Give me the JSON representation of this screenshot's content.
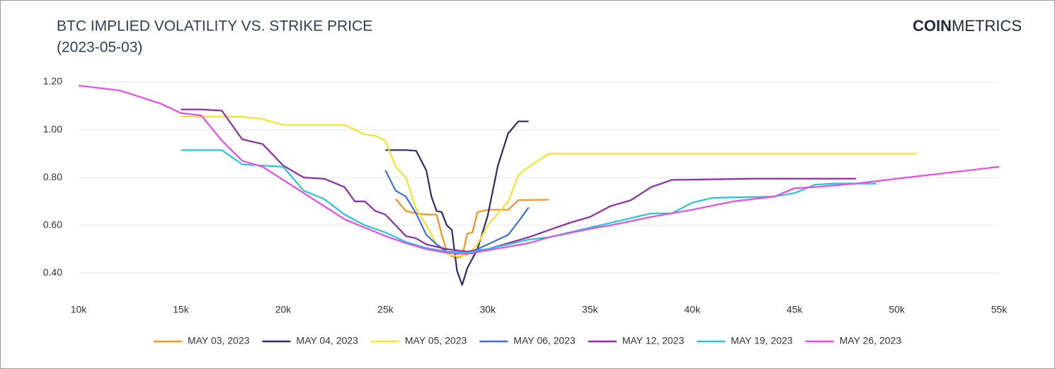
{
  "logo": {
    "bold": "COIN",
    "light": "METRICS"
  },
  "chart_data": {
    "type": "line",
    "title": "BTC IMPLIED VOLATILITY VS. STRIKE PRICE",
    "subtitle": "(2023-05-03)",
    "xlim": [
      10000,
      55000
    ],
    "xticks": [
      {
        "value": 10000,
        "label": "10k"
      },
      {
        "value": 15000,
        "label": "15k"
      },
      {
        "value": 20000,
        "label": "20k"
      },
      {
        "value": 25000,
        "label": "25k"
      },
      {
        "value": 30000,
        "label": "30k"
      },
      {
        "value": 35000,
        "label": "35k"
      },
      {
        "value": 40000,
        "label": "40k"
      },
      {
        "value": 45000,
        "label": "45k"
      },
      {
        "value": 50000,
        "label": "50k"
      },
      {
        "value": 55000,
        "label": "55k"
      }
    ],
    "ylim": [
      0.3,
      1.2
    ],
    "yticks": [
      {
        "value": 0.4,
        "label": "0.40"
      },
      {
        "value": 0.6,
        "label": "0.60"
      },
      {
        "value": 0.8,
        "label": "0.80"
      },
      {
        "value": 1.0,
        "label": "1.00"
      },
      {
        "value": 1.2,
        "label": "1.20"
      }
    ],
    "grid": true,
    "legend": "bottom",
    "series": [
      {
        "name": "MAY 03, 2023",
        "color": "#f7931a",
        "x": [
          25500,
          26000,
          26500,
          27000,
          27500,
          27750,
          28000,
          28250,
          28500,
          28750,
          29000,
          29250,
          29500,
          30000,
          31000,
          31500,
          33000
        ],
        "values": [
          0.71,
          0.66,
          0.65,
          0.645,
          0.645,
          0.56,
          0.49,
          0.47,
          0.465,
          0.47,
          0.565,
          0.57,
          0.655,
          0.665,
          0.665,
          0.705,
          0.707
        ]
      },
      {
        "name": "MAY 04, 2023",
        "color": "#2b2d6b",
        "x": [
          25000,
          26000,
          26500,
          27000,
          27250,
          27500,
          27750,
          28000,
          28250,
          28500,
          28750,
          29000,
          29500,
          30000,
          30500,
          31000,
          31500,
          32000
        ],
        "values": [
          0.915,
          0.915,
          0.912,
          0.83,
          0.72,
          0.66,
          0.655,
          0.6,
          0.58,
          0.41,
          0.35,
          0.42,
          0.5,
          0.64,
          0.85,
          0.985,
          1.035,
          1.035
        ]
      },
      {
        "name": "MAY 05, 2023",
        "color": "#f5e22e",
        "x": [
          15000,
          17000,
          18000,
          19000,
          20000,
          23000,
          24000,
          24500,
          25000,
          25500,
          26000,
          26500,
          27000,
          27500,
          28000,
          28500,
          29000,
          29500,
          30000,
          30500,
          31000,
          31500,
          32000,
          33000,
          51000
        ],
        "values": [
          1.055,
          1.055,
          1.055,
          1.045,
          1.02,
          1.02,
          0.98,
          0.975,
          0.955,
          0.845,
          0.8,
          0.67,
          0.6,
          0.52,
          0.48,
          0.47,
          0.475,
          0.52,
          0.6,
          0.65,
          0.7,
          0.81,
          0.845,
          0.9,
          0.9
        ]
      },
      {
        "name": "MAY 06, 2023",
        "color": "#3f6fd8",
        "x": [
          25000,
          25500,
          26000,
          26500,
          27000,
          27500,
          28000,
          28500,
          29000,
          29500,
          30000,
          31000,
          31500,
          32000
        ],
        "values": [
          0.83,
          0.745,
          0.72,
          0.65,
          0.56,
          0.52,
          0.49,
          0.48,
          0.485,
          0.5,
          0.52,
          0.56,
          0.615,
          0.675
        ]
      },
      {
        "name": "MAY 12, 2023",
        "color": "#8e2ba8",
        "x": [
          15000,
          16000,
          17000,
          18000,
          19000,
          20000,
          21000,
          22000,
          23000,
          23500,
          24000,
          24500,
          25000,
          25500,
          26000,
          26500,
          27000,
          28000,
          29000,
          30000,
          31000,
          32000,
          33000,
          34000,
          35000,
          36000,
          37000,
          38000,
          39000,
          43000,
          48000
        ],
        "values": [
          1.085,
          1.085,
          1.08,
          0.96,
          0.94,
          0.85,
          0.8,
          0.795,
          0.76,
          0.7,
          0.7,
          0.66,
          0.645,
          0.6,
          0.555,
          0.545,
          0.52,
          0.5,
          0.49,
          0.5,
          0.525,
          0.55,
          0.58,
          0.61,
          0.635,
          0.68,
          0.705,
          0.76,
          0.79,
          0.795,
          0.795
        ]
      },
      {
        "name": "MAY 19, 2023",
        "color": "#29c4d6",
        "x": [
          15000,
          17000,
          18000,
          19000,
          20000,
          21000,
          22000,
          23000,
          24000,
          25000,
          26000,
          27000,
          28000,
          29000,
          30000,
          31000,
          32000,
          33000,
          35000,
          36000,
          37000,
          38000,
          39000,
          40000,
          41000,
          44000,
          45000,
          46000,
          47000,
          49000
        ],
        "values": [
          0.915,
          0.915,
          0.855,
          0.85,
          0.845,
          0.745,
          0.71,
          0.645,
          0.6,
          0.57,
          0.53,
          0.505,
          0.49,
          0.485,
          0.5,
          0.52,
          0.54,
          0.55,
          0.59,
          0.61,
          0.63,
          0.65,
          0.65,
          0.695,
          0.715,
          0.72,
          0.735,
          0.77,
          0.775,
          0.775
        ]
      },
      {
        "name": "MAY 26, 2023",
        "color": "#e84be8",
        "x": [
          10000,
          12000,
          14000,
          15000,
          16000,
          17000,
          18000,
          19000,
          20000,
          21000,
          22000,
          23000,
          24000,
          25000,
          26000,
          27000,
          28000,
          29000,
          30000,
          32000,
          33000,
          35000,
          36000,
          38000,
          40000,
          42000,
          44000,
          45000,
          46000,
          48000,
          50000,
          55000
        ],
        "values": [
          1.185,
          1.165,
          1.11,
          1.07,
          1.06,
          0.955,
          0.87,
          0.845,
          0.79,
          0.735,
          0.68,
          0.625,
          0.59,
          0.555,
          0.525,
          0.5,
          0.485,
          0.48,
          0.495,
          0.525,
          0.55,
          0.585,
          0.6,
          0.635,
          0.665,
          0.7,
          0.72,
          0.755,
          0.76,
          0.775,
          0.795,
          0.845
        ]
      }
    ]
  }
}
